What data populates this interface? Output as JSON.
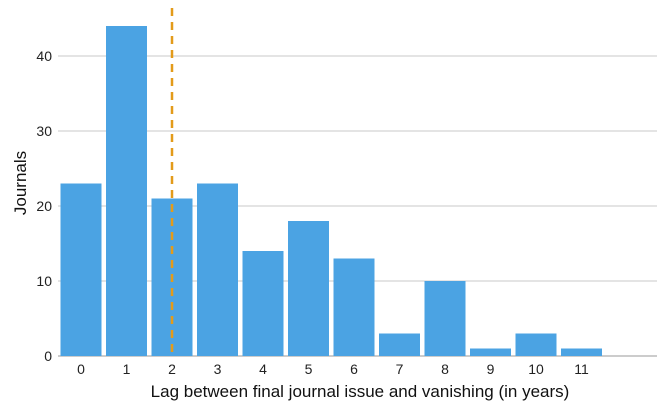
{
  "chart_data": {
    "type": "bar",
    "categories": [
      "0",
      "1",
      "2",
      "3",
      "4",
      "5",
      "6",
      "7",
      "8",
      "9",
      "10",
      "11"
    ],
    "values": [
      23,
      44,
      21,
      23,
      14,
      18,
      13,
      3,
      10,
      1,
      3,
      1
    ],
    "xlabel": "Lag between final journal issue and vanishing (in years)",
    "ylabel": "Journals",
    "ylim": [
      0,
      44
    ],
    "yticks": [
      0,
      10,
      20,
      30,
      40
    ],
    "grid": "horizontal",
    "bar_color": "#4BA3E3",
    "reference_line": {
      "x": 2,
      "style": "dashed",
      "color": "#E39B1A"
    }
  }
}
